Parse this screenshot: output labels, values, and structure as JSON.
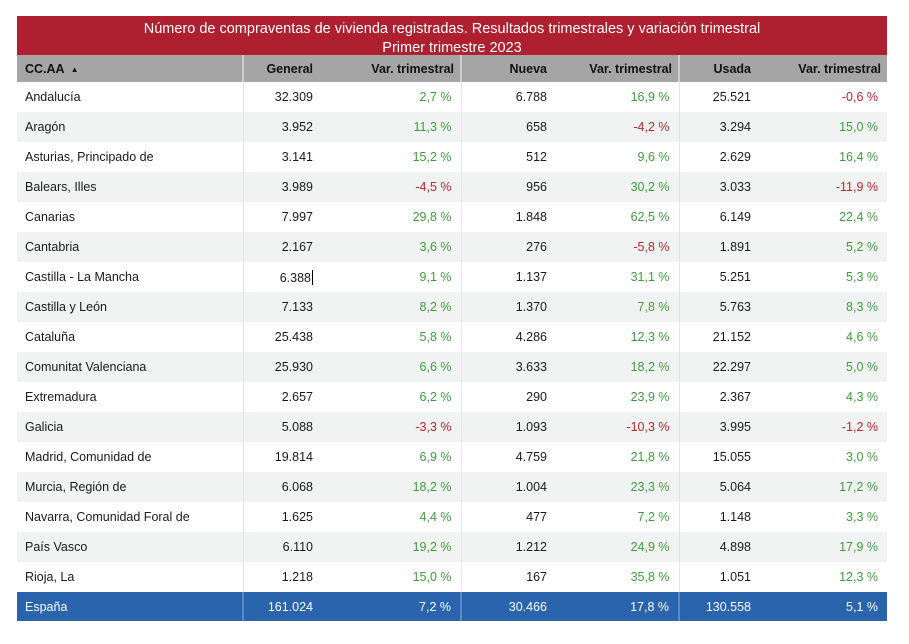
{
  "title": {
    "line1": "Número de compraventas de vivienda registradas. Resultados trimestrales  y variación trimestral",
    "line2": "Primer trimestre 2023"
  },
  "colors": {
    "title_bg": "#ae1f2f",
    "header_bg": "#a5a5a5",
    "total_bg": "#2a64ad",
    "positive": "#3f9b3f",
    "negative": "#b7282e"
  },
  "columns": [
    {
      "label": "CC.AA",
      "sort_icon": "sort-ascending-icon"
    },
    {
      "label": "General"
    },
    {
      "label": "Var. trimestral"
    },
    {
      "label": "Nueva"
    },
    {
      "label": "Var. trimestral"
    },
    {
      "label": "Usada"
    },
    {
      "label": "Var. trimestral"
    }
  ],
  "rows": [
    {
      "region": "Andalucía",
      "general": "32.309",
      "var_general": "2,7 %",
      "nueva": "6.788",
      "var_nueva": "16,9 %",
      "usada": "25.521",
      "var_usada": "-0,6 %"
    },
    {
      "region": "Aragón",
      "general": "3.952",
      "var_general": "11,3 %",
      "nueva": "658",
      "var_nueva": "-4,2 %",
      "usada": "3.294",
      "var_usada": "15,0 %"
    },
    {
      "region": "Asturias, Principado de",
      "general": "3.141",
      "var_general": "15,2 %",
      "nueva": "512",
      "var_nueva": "9,6 %",
      "usada": "2.629",
      "var_usada": "16,4 %"
    },
    {
      "region": "Balears, Illes",
      "general": "3.989",
      "var_general": "-4,5 %",
      "nueva": "956",
      "var_nueva": "30,2 %",
      "usada": "3.033",
      "var_usada": "-11,9 %"
    },
    {
      "region": "Canarias",
      "general": "7.997",
      "var_general": "29,8 %",
      "nueva": "1.848",
      "var_nueva": "62,5 %",
      "usada": "6.149",
      "var_usada": "22,4 %"
    },
    {
      "region": "Cantabria",
      "general": "2.167",
      "var_general": "3,6 %",
      "nueva": "276",
      "var_nueva": "-5,8 %",
      "usada": "1.891",
      "var_usada": "5,2 %"
    },
    {
      "region": "Castilla - La Mancha",
      "general": "6.388",
      "var_general": "9,1 %",
      "nueva": "1.137",
      "var_nueva": "31,1 %",
      "usada": "5.251",
      "var_usada": "5,3 %",
      "caret": true
    },
    {
      "region": "Castilla y León",
      "general": "7.133",
      "var_general": "8,2 %",
      "nueva": "1.370",
      "var_nueva": "7,8 %",
      "usada": "5.763",
      "var_usada": "8,3 %"
    },
    {
      "region": "Cataluña",
      "general": "25.438",
      "var_general": "5,8 %",
      "nueva": "4.286",
      "var_nueva": "12,3 %",
      "usada": "21.152",
      "var_usada": "4,6 %"
    },
    {
      "region": "Comunitat Valenciana",
      "general": "25.930",
      "var_general": "6,6 %",
      "nueva": "3.633",
      "var_nueva": "18,2 %",
      "usada": "22.297",
      "var_usada": "5,0 %"
    },
    {
      "region": "Extremadura",
      "general": "2.657",
      "var_general": "6,2 %",
      "nueva": "290",
      "var_nueva": "23,9 %",
      "usada": "2.367",
      "var_usada": "4,3 %"
    },
    {
      "region": "Galicia",
      "general": "5.088",
      "var_general": "-3,3 %",
      "nueva": "1.093",
      "var_nueva": "-10,3 %",
      "usada": "3.995",
      "var_usada": "-1,2 %"
    },
    {
      "region": "Madrid, Comunidad de",
      "general": "19.814",
      "var_general": "6,9 %",
      "nueva": "4.759",
      "var_nueva": "21,8 %",
      "usada": "15.055",
      "var_usada": "3,0 %"
    },
    {
      "region": "Murcia, Región de",
      "general": "6.068",
      "var_general": "18,2 %",
      "nueva": "1.004",
      "var_nueva": "23,3 %",
      "usada": "5.064",
      "var_usada": "17,2 %"
    },
    {
      "region": "Navarra, Comunidad Foral de",
      "general": "1.625",
      "var_general": "4,4 %",
      "nueva": "477",
      "var_nueva": "7,2 %",
      "usada": "1.148",
      "var_usada": "3,3 %"
    },
    {
      "region": "País Vasco",
      "general": "6.110",
      "var_general": "19,2 %",
      "nueva": "1.212",
      "var_nueva": "24,9 %",
      "usada": "4.898",
      "var_usada": "17,9 %"
    },
    {
      "region": "Rioja, La",
      "general": "1.218",
      "var_general": "15,0 %",
      "nueva": "167",
      "var_nueva": "35,8 %",
      "usada": "1.051",
      "var_usada": "12,3 %"
    }
  ],
  "total": {
    "region": "España",
    "general": "161.024",
    "var_general": "7,2 %",
    "nueva": "30.466",
    "var_nueva": "17,8 %",
    "usada": "130.558",
    "var_usada": "5,1 %"
  }
}
